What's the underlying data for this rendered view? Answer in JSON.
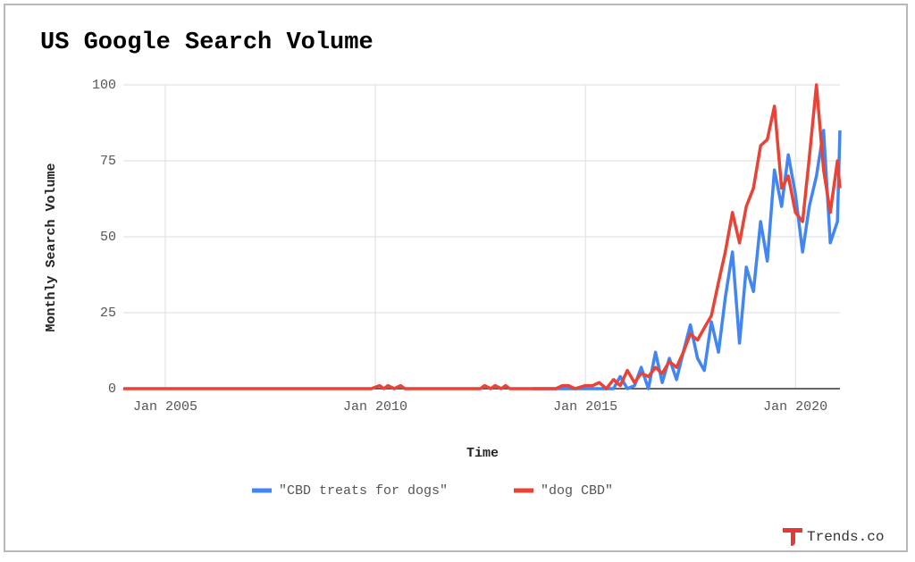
{
  "chart_data": {
    "type": "line",
    "title": "US Google Search Volume",
    "y_label": "Monthly Search Volume",
    "x_label": "Time",
    "watermark": "Trends.co",
    "xlim": [
      2004,
      2021.06
    ],
    "xticks": [
      {
        "value": 2005,
        "label": "Jan 2005"
      },
      {
        "value": 2010,
        "label": "Jan 2010"
      },
      {
        "value": 2015,
        "label": "Jan 2015"
      },
      {
        "value": 2020,
        "label": "Jan 2020"
      }
    ],
    "ylim": [
      0,
      100
    ],
    "yticks": [
      0,
      25,
      50,
      75,
      100
    ],
    "grid": true,
    "legend": "bottom",
    "series": [
      {
        "name": "\"CBD treats for dogs\"",
        "color": "#4285f4",
        "x": [
          2013.75,
          2015,
          2015.17,
          2015.33,
          2015.5,
          2015.67,
          2015.83,
          2016,
          2016.17,
          2016.33,
          2016.5,
          2016.67,
          2016.83,
          2017,
          2017.17,
          2017.33,
          2017.5,
          2017.67,
          2017.83,
          2018,
          2018.17,
          2018.33,
          2018.5,
          2018.67,
          2018.83,
          2019,
          2019.17,
          2019.33,
          2019.5,
          2019.67,
          2019.83,
          2020,
          2020.17,
          2020.33,
          2020.5,
          2020.67,
          2020.83,
          2021,
          2021.06
        ],
        "values": [
          0,
          0,
          0,
          0,
          0,
          0,
          4,
          0,
          1,
          7,
          0,
          12,
          2,
          10,
          3,
          12,
          21,
          10,
          6,
          22,
          12,
          30,
          45,
          15,
          40,
          32,
          55,
          42,
          72,
          60,
          77,
          64,
          45,
          60,
          70,
          85,
          48,
          55,
          85
        ]
      },
      {
        "name": "\"dog CBD\"",
        "color": "#ea4335",
        "x": [
          2004,
          2009.9,
          2010.1,
          2010.2,
          2010.3,
          2010.45,
          2010.6,
          2010.7,
          2012.5,
          2012.6,
          2012.75,
          2012.85,
          2013,
          2013.1,
          2013.2,
          2014.3,
          2014.45,
          2014.6,
          2014.75,
          2015,
          2015.17,
          2015.33,
          2015.5,
          2015.67,
          2015.83,
          2016,
          2016.17,
          2016.33,
          2016.5,
          2016.67,
          2016.83,
          2017,
          2017.17,
          2017.33,
          2017.5,
          2017.67,
          2017.83,
          2018,
          2018.17,
          2018.33,
          2018.5,
          2018.67,
          2018.83,
          2019,
          2019.17,
          2019.33,
          2019.5,
          2019.67,
          2019.83,
          2020,
          2020.17,
          2020.33,
          2020.5,
          2020.67,
          2020.83,
          2021,
          2021.06
        ],
        "values": [
          0,
          0,
          1,
          0,
          1,
          0,
          1,
          0,
          0,
          1,
          0,
          1,
          0,
          1,
          0,
          0,
          1,
          1,
          0,
          1,
          1,
          2,
          0,
          3,
          1,
          6,
          2,
          5,
          4,
          7,
          5,
          9,
          7,
          12,
          18,
          16,
          20,
          24,
          35,
          45,
          58,
          48,
          60,
          66,
          80,
          82,
          93,
          66,
          70,
          58,
          55,
          76,
          100,
          72,
          58,
          75,
          66
        ]
      }
    ]
  }
}
